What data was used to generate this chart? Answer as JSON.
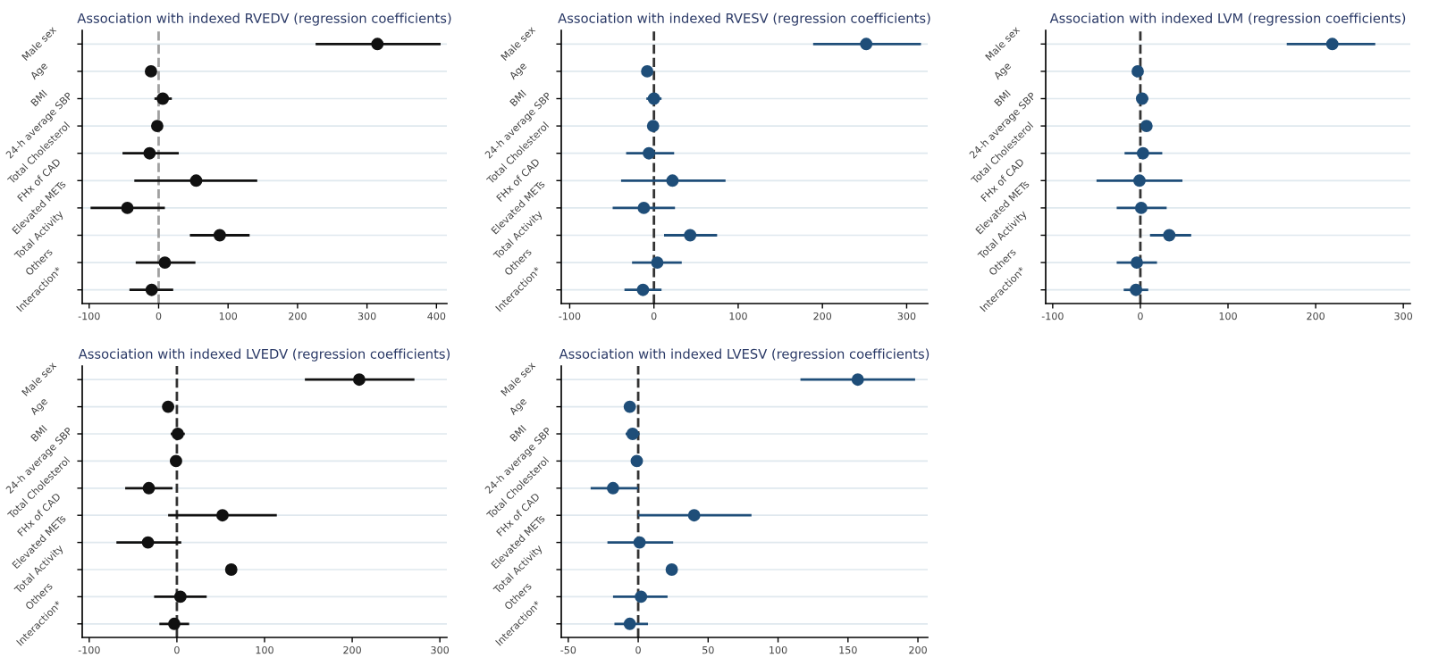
{
  "chart_data": [
    {
      "type": "scatter",
      "orientation": "horizontal",
      "title": "Association with indexed RVEDV (regression coefficients)",
      "categories": [
        "Male sex",
        "Age",
        "BMI",
        "24-h average SBP",
        "Total Cholesterol",
        "FHx of CAD",
        "Elevated METs",
        "Total Activity",
        "Others",
        "Interaction*"
      ],
      "series": [
        {
          "color": "#111111",
          "values": [
            315,
            -11,
            6,
            -2,
            -13,
            54,
            -45,
            88,
            9,
            -10
          ],
          "errors": [
            [
              226,
              406
            ],
            null,
            [
              -6,
              19
            ],
            null,
            [
              -52,
              29
            ],
            [
              -35,
              142
            ],
            [
              -98,
              9
            ],
            [
              45,
              131
            ],
            [
              -33,
              53
            ],
            [
              -42,
              21
            ]
          ]
        }
      ],
      "xlim": [
        -110,
        415
      ],
      "xticks": [
        -100,
        0,
        100,
        200,
        300,
        400
      ],
      "grid": "y",
      "marker": "circle",
      "ref_lines": [
        {
          "axis": "x",
          "value": 0,
          "color": "#a0a0a0",
          "line_style": "dashed"
        }
      ]
    },
    {
      "type": "scatter",
      "orientation": "horizontal",
      "title": "Association with indexed RVESV (regression coefficients)",
      "categories": [
        "Male sex",
        "Age",
        "BMI",
        "24-h average SBP",
        "Total Cholesterol",
        "FHx of CAD",
        "Elevated METs",
        "Total Activity",
        "Others",
        "Interaction*"
      ],
      "series": [
        {
          "color": "#1f4e79",
          "values": [
            252,
            -8,
            0,
            -1,
            -6,
            22,
            -12,
            43,
            4,
            -13
          ],
          "errors": [
            [
              189,
              317
            ],
            null,
            [
              -9,
              9
            ],
            null,
            [
              -33,
              24
            ],
            [
              -39,
              85
            ],
            [
              -49,
              25
            ],
            [
              12,
              75
            ],
            [
              -26,
              33
            ],
            [
              -35,
              9
            ]
          ]
        }
      ],
      "xlim": [
        -110,
        325
      ],
      "xticks": [
        -100,
        0,
        100,
        200,
        300
      ],
      "grid": "y",
      "marker": "circle",
      "ref_lines": [
        {
          "axis": "x",
          "value": 0,
          "color": "#333333",
          "line_style": "dashed"
        }
      ]
    },
    {
      "type": "scatter",
      "orientation": "horizontal",
      "title": "Association with indexed LVM (regression coefficients)",
      "categories": [
        "Male sex",
        "Age",
        "BMI",
        "24-h average SBP",
        "Total Cholesterol",
        "FHx of CAD",
        "Elevated METs",
        "Total Activity",
        "Others",
        "Interaction*"
      ],
      "series": [
        {
          "color": "#1f4e79",
          "values": [
            219,
            -3,
            2,
            7,
            3,
            -1,
            1,
            33,
            -4,
            -5
          ],
          "errors": [
            [
              167,
              268
            ],
            null,
            [
              -4,
              9
            ],
            null,
            [
              -18,
              25
            ],
            [
              -50,
              48
            ],
            [
              -27,
              30
            ],
            [
              11,
              58
            ],
            [
              -27,
              19
            ],
            [
              -19,
              9
            ]
          ]
        }
      ],
      "xlim": [
        -108,
        308
      ],
      "xticks": [
        -100,
        0,
        100,
        200,
        300
      ],
      "grid": "y",
      "marker": "circle",
      "ref_lines": [
        {
          "axis": "x",
          "value": 0,
          "color": "#333333",
          "line_style": "dashed"
        }
      ]
    },
    {
      "type": "scatter",
      "orientation": "horizontal",
      "title": "Association with indexed LVEDV (regression coefficients)",
      "categories": [
        "Male sex",
        "Age",
        "BMI",
        "24-h average SBP",
        "Total Cholesterol",
        "FHx of CAD",
        "Elevated METs",
        "Total Activity",
        "Others",
        "Interaction*"
      ],
      "series": [
        {
          "color": "#111111",
          "values": [
            208,
            -10,
            1,
            -1,
            -32,
            52,
            -33,
            62,
            4,
            -3
          ],
          "errors": [
            [
              146,
              271
            ],
            null,
            [
              -7,
              9
            ],
            null,
            [
              -59,
              -5
            ],
            [
              -10,
              114
            ],
            [
              -69,
              5
            ],
            null,
            [
              -26,
              34
            ],
            [
              -20,
              14
            ]
          ]
        }
      ],
      "xlim": [
        -108,
        308
      ],
      "xticks": [
        -100,
        0,
        100,
        200,
        300
      ],
      "grid": "y",
      "marker": "circle",
      "ref_lines": [
        {
          "axis": "x",
          "value": 0,
          "color": "#333333",
          "line_style": "dashed"
        }
      ]
    },
    {
      "type": "scatter",
      "orientation": "horizontal",
      "title": "Association with indexed LVESV (regression coefficients)",
      "categories": [
        "Male sex",
        "Age",
        "BMI",
        "24-h average SBP",
        "Total Cholesterol",
        "FHx of CAD",
        "Elevated METs",
        "Total Activity",
        "Others",
        "Interaction*"
      ],
      "series": [
        {
          "color": "#1f4e79",
          "values": [
            157,
            -6,
            -4,
            -1,
            -18,
            40,
            1,
            24,
            2,
            -6
          ],
          "errors": [
            [
              116,
              198
            ],
            null,
            [
              -9,
              1
            ],
            null,
            [
              -34,
              0
            ],
            [
              0,
              81
            ],
            [
              -22,
              25
            ],
            null,
            [
              -18,
              21
            ],
            [
              -17,
              7
            ]
          ]
        }
      ],
      "xlim": [
        -55,
        207
      ],
      "xticks": [
        -50,
        0,
        50,
        100,
        150,
        200
      ],
      "grid": "y",
      "marker": "circle",
      "ref_lines": [
        {
          "axis": "x",
          "value": 0,
          "color": "#333333",
          "line_style": "dashed"
        }
      ]
    }
  ]
}
